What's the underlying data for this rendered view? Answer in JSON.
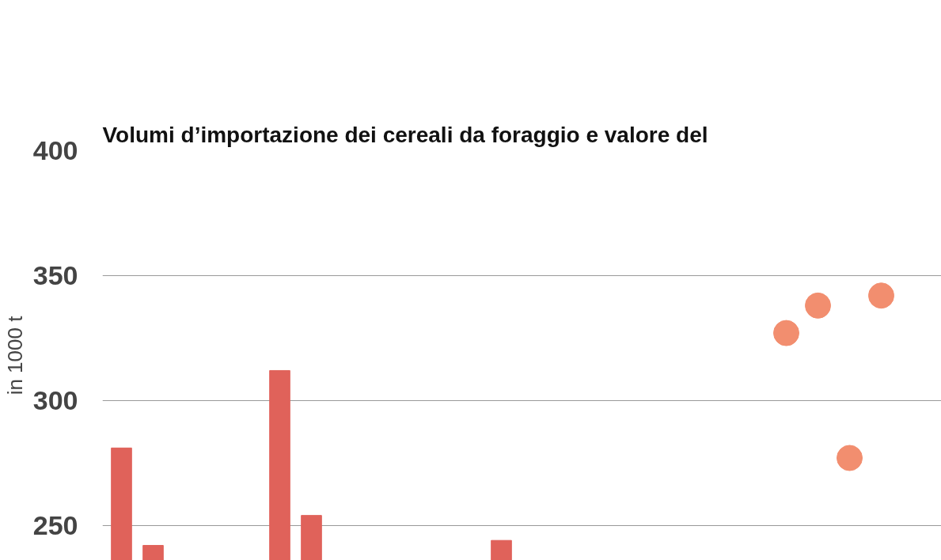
{
  "chart_data": {
    "type": "bar",
    "title": "Volumi d’importazione dei cereali da foraggio e valore del",
    "ylabel": "in 1000 t",
    "categories": [
      null,
      null,
      null,
      null,
      null,
      null,
      null,
      null,
      null,
      null,
      null,
      null,
      null,
      null,
      null,
      null,
      null,
      null,
      null,
      null,
      null,
      null,
      null,
      null,
      null,
      null
    ],
    "series": [
      {
        "color": "#e0625a",
        "values": [
          281,
          242,
          null,
          null,
          null,
          312,
          254,
          null,
          null,
          null,
          null,
          null,
          244,
          null,
          null,
          null,
          null,
          null,
          null,
          null,
          null,
          null,
          null,
          null,
          null,
          null
        ]
      },
      {
        "type": "scatter",
        "marker": "circle",
        "color": "#f28e6f",
        "values": [
          null,
          null,
          null,
          null,
          null,
          null,
          null,
          null,
          null,
          null,
          null,
          null,
          null,
          null,
          null,
          null,
          null,
          null,
          null,
          null,
          null,
          327,
          338,
          277,
          342,
          null
        ]
      }
    ],
    "ylim": [
      236,
      400
    ],
    "yticks": [
      250,
      300,
      350,
      400
    ],
    "grid": "y"
  }
}
